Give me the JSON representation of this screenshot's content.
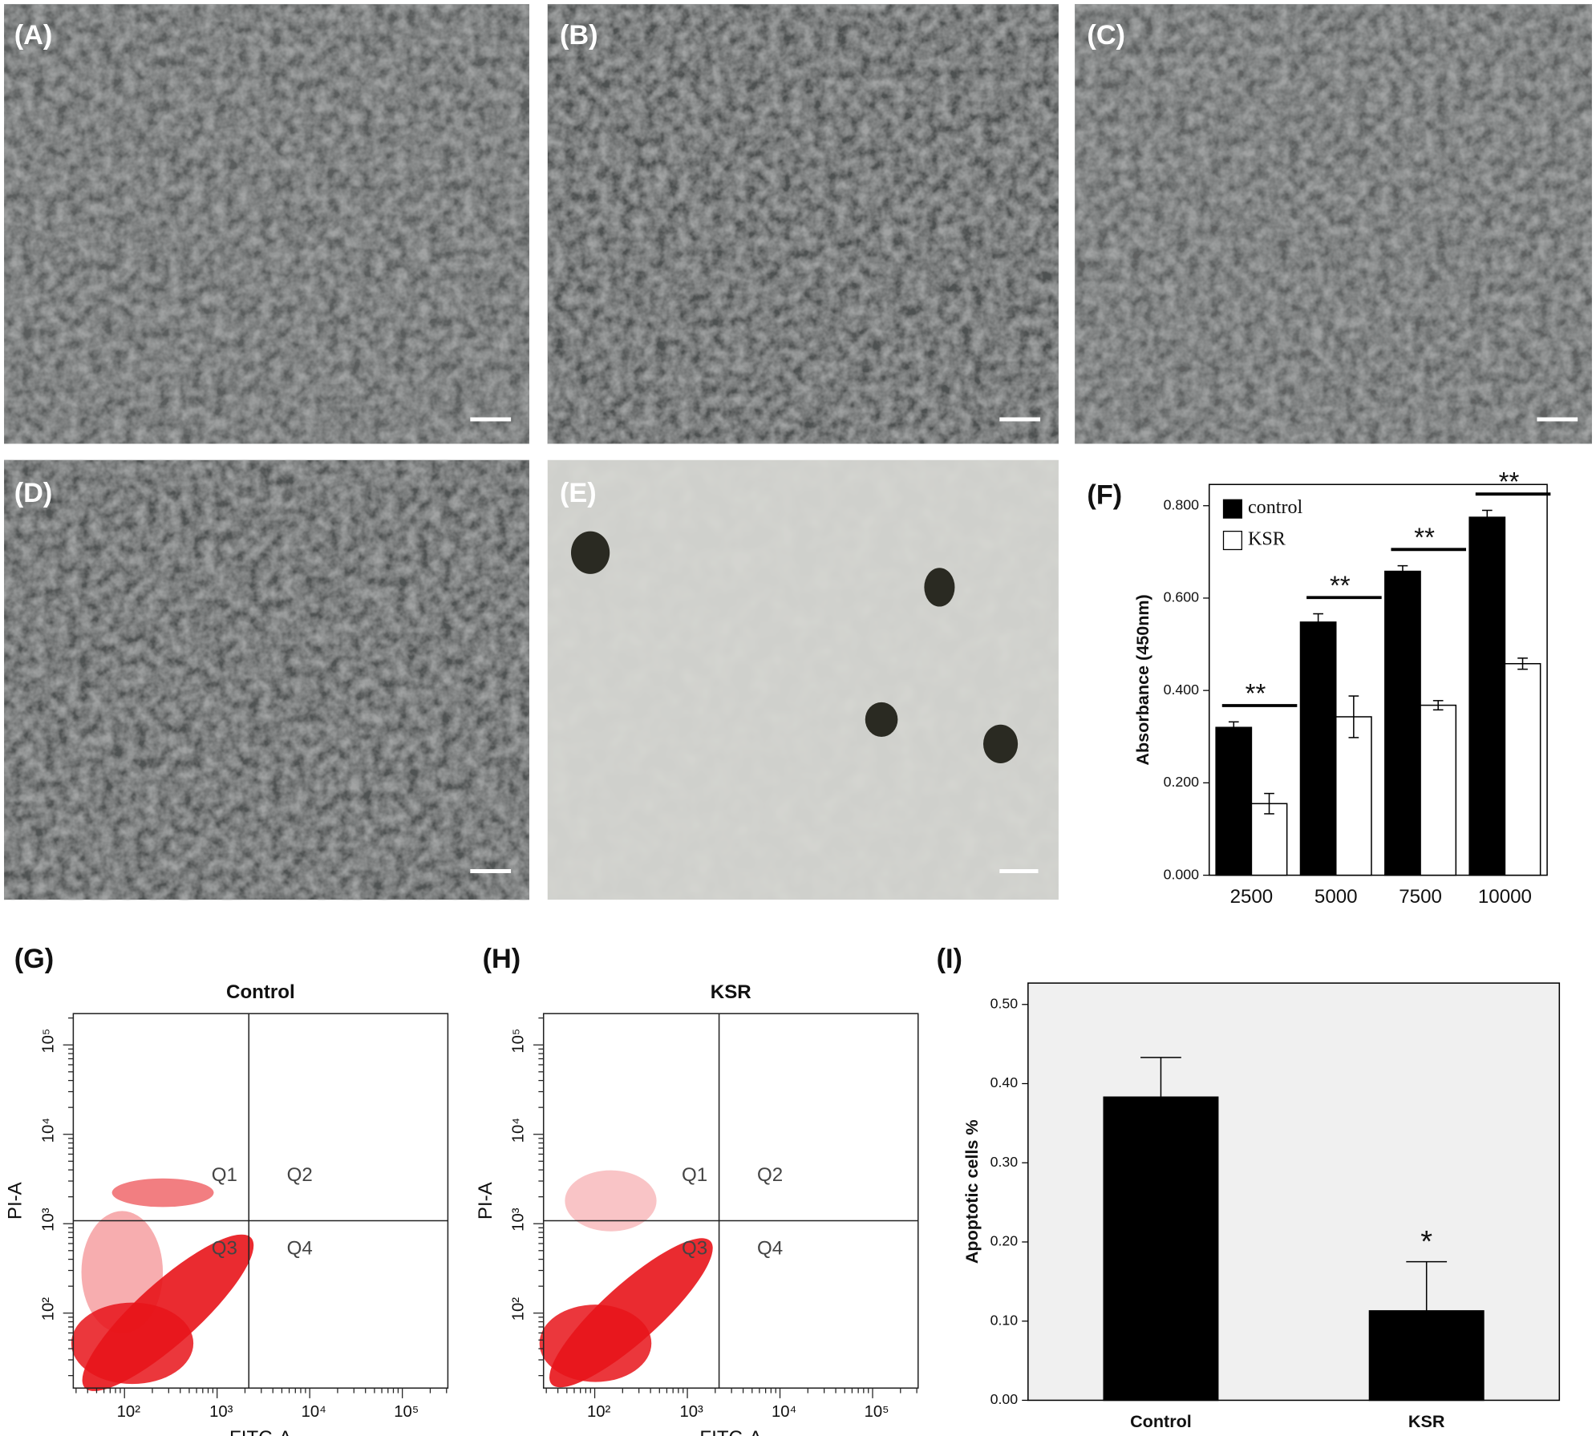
{
  "panel_labels": [
    "(A)",
    "(B)",
    "(C)",
    "(D)",
    "(E)",
    "(F)",
    "(G)",
    "(H)",
    "(I)"
  ],
  "chart_data": [
    {
      "type": "bar",
      "ylabel": "Absorbance (450nm)",
      "categories": [
        "2500",
        "5000",
        "7500",
        "10000"
      ],
      "series": [
        {
          "name": "control",
          "color": "#000000",
          "values": [
            0.32,
            0.548,
            0.658,
            0.775
          ],
          "errors": [
            0.012,
            0.018,
            0.012,
            0.015
          ]
        },
        {
          "name": "KSR",
          "color": "#ffffff",
          "values": [
            0.155,
            0.343,
            0.368,
            0.458
          ],
          "errors": [
            0.022,
            0.045,
            0.01,
            0.012
          ]
        }
      ],
      "annotations": [
        "**",
        "**",
        "**",
        "**"
      ],
      "ylim": [
        0,
        0.846
      ],
      "yticks": [
        {
          "value": 0,
          "label": "0.000"
        },
        {
          "value": 0.2,
          "label": "0.200"
        },
        {
          "value": 0.4,
          "label": "0.400"
        },
        {
          "value": 0.6,
          "label": "0.600"
        },
        {
          "value": 0.8,
          "label": "0.800"
        }
      ],
      "legend": "upper left"
    },
    {
      "type": "scatter",
      "title": "Control",
      "xlabel": "FITC-A",
      "ylabel": "PI-A",
      "log": true,
      "color": "#e8141a",
      "xlim": [
        28,
        310000
      ],
      "ylim": [
        14.5,
        224000
      ],
      "xticks": [
        {
          "value": 100,
          "label": "10²"
        },
        {
          "value": 1000,
          "label": "10³"
        },
        {
          "value": 10000,
          "label": "10⁴"
        },
        {
          "value": 100000,
          "label": "10⁵"
        }
      ],
      "yticks": [
        {
          "value": 100,
          "label": "10²"
        },
        {
          "value": 1000,
          "label": "10³"
        },
        {
          "value": 10000,
          "label": "10⁴"
        },
        {
          "value": 100000,
          "label": "10⁵"
        }
      ],
      "gate": {
        "x": 2200,
        "y": 1080
      },
      "quadrant_labels": [
        "Q1",
        "Q2",
        "Q3",
        "Q4"
      ]
    },
    {
      "type": "scatter",
      "title": "KSR",
      "xlabel": "FITC-A",
      "ylabel": "PI-A",
      "log": true,
      "color": "#e8141a",
      "xlim": [
        28,
        310000
      ],
      "ylim": [
        14.5,
        224000
      ],
      "xticks": [
        {
          "value": 100,
          "label": "10²"
        },
        {
          "value": 1000,
          "label": "10³"
        },
        {
          "value": 10000,
          "label": "10⁴"
        },
        {
          "value": 100000,
          "label": "10⁵"
        }
      ],
      "yticks": [
        {
          "value": 100,
          "label": "10²"
        },
        {
          "value": 1000,
          "label": "10³"
        },
        {
          "value": 10000,
          "label": "10⁴"
        },
        {
          "value": 100000,
          "label": "10⁵"
        }
      ],
      "gate": {
        "x": 2200,
        "y": 1080
      },
      "quadrant_labels": [
        "Q1",
        "Q2",
        "Q3",
        "Q4"
      ]
    },
    {
      "type": "bar",
      "ylabel": "Apoptotic cells %",
      "categories": [
        "Control",
        "KSR"
      ],
      "values": [
        0.383,
        0.113
      ],
      "errors": [
        0.05,
        0.062
      ],
      "color": "#000000",
      "annotations": [
        null,
        "*"
      ],
      "ylim": [
        0,
        0.527
      ],
      "yticks": [
        {
          "value": 0,
          "label": "0.00"
        },
        {
          "value": 0.1,
          "label": "0.10"
        },
        {
          "value": 0.2,
          "label": "0.20"
        },
        {
          "value": 0.3,
          "label": "0.30"
        },
        {
          "value": 0.4,
          "label": "0.40"
        },
        {
          "value": 0.5,
          "label": "0.50"
        }
      ]
    }
  ]
}
